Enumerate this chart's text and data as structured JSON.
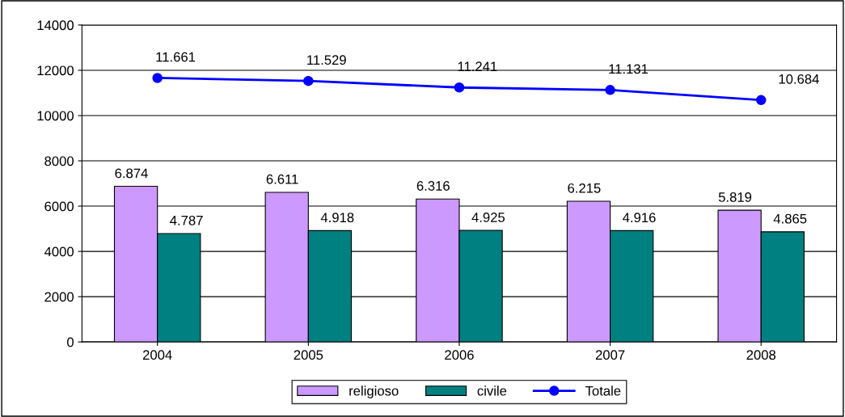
{
  "chart_data": {
    "type": "bar",
    "categories": [
      "2004",
      "2005",
      "2006",
      "2007",
      "2008"
    ],
    "series": [
      {
        "name": "religioso",
        "color": "#cc99ff",
        "values": [
          6874,
          6611,
          6316,
          6215,
          5819
        ],
        "value_labels": [
          "6.874",
          "6.611",
          "6.316",
          "6.215",
          "5.819"
        ]
      },
      {
        "name": "civile",
        "color": "#008080",
        "values": [
          4787,
          4918,
          4925,
          4916,
          4865
        ],
        "value_labels": [
          "4.787",
          "4.918",
          "4.925",
          "4.916",
          "4.865"
        ]
      },
      {
        "name": "Totale",
        "type": "line",
        "color": "#0000ff",
        "marker": "circle",
        "values": [
          11661,
          11529,
          11241,
          11131,
          10684
        ],
        "value_labels": [
          "11.661",
          "11.529",
          "11.241",
          "11.131",
          "10.684"
        ]
      }
    ],
    "ylim": [
      0,
      14000
    ],
    "yticks": [
      0,
      2000,
      4000,
      6000,
      8000,
      10000,
      12000,
      14000
    ],
    "grid": "y",
    "legend": "bottom"
  }
}
